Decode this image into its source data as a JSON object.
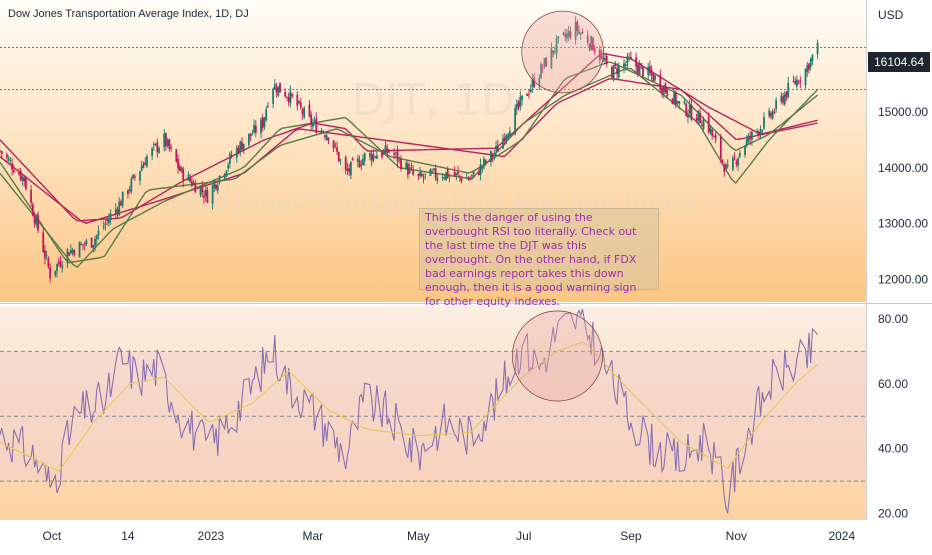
{
  "chart_data": [
    {
      "type": "candlestick",
      "title": "Dow Jones Transportation Average Index, 1D, DJ",
      "watermark": "DJT, 1D\nDow Jones Transportation Average Index",
      "currency": "USD",
      "last_price_label": "16104.64",
      "y_ticks": [
        "15000.00",
        "14000.00",
        "13000.00",
        "12000.00"
      ],
      "y_tick_values": [
        15000,
        14000,
        13000,
        12000
      ],
      "ylim": [
        11600,
        17000
      ],
      "x_tick_labels": [
        "Oct",
        "14",
        "2023",
        "Mar",
        "May",
        "Jul",
        "Sep",
        "Nov",
        "2024"
      ],
      "x_tick_dates": [
        "2022-10-01",
        "2022-11-14",
        "2023-01-01",
        "2023-03-01",
        "2023-05-01",
        "2023-07-01",
        "2023-09-01",
        "2023-11-01",
        "2024-01-01"
      ],
      "x_range": [
        "2022-09-01",
        "2024-01-15"
      ],
      "close_anchors": [
        [
          "2022-09-01",
          14300
        ],
        [
          "2022-09-15",
          13800
        ],
        [
          "2022-09-30",
          12100
        ],
        [
          "2022-10-10",
          12500
        ],
        [
          "2022-10-25",
          12700
        ],
        [
          "2022-11-10",
          13400
        ],
        [
          "2022-11-25",
          14200
        ],
        [
          "2022-12-05",
          14500
        ],
        [
          "2022-12-15",
          13900
        ],
        [
          "2022-12-30",
          13500
        ],
        [
          "2023-01-15",
          14300
        ],
        [
          "2023-01-31",
          14800
        ],
        [
          "2023-02-05",
          15500
        ],
        [
          "2023-02-15",
          15300
        ],
        [
          "2023-02-28",
          14800
        ],
        [
          "2023-03-10",
          14600
        ],
        [
          "2023-03-20",
          13900
        ],
        [
          "2023-03-31",
          14200
        ],
        [
          "2023-04-15",
          14300
        ],
        [
          "2023-04-30",
          13800
        ],
        [
          "2023-05-15",
          13900
        ],
        [
          "2023-05-31",
          13800
        ],
        [
          "2023-06-15",
          14300
        ],
        [
          "2023-06-30",
          15200
        ],
        [
          "2023-07-10",
          15700
        ],
        [
          "2023-07-20",
          16200
        ],
        [
          "2023-07-31",
          16500
        ],
        [
          "2023-08-10",
          16200
        ],
        [
          "2023-08-20",
          15700
        ],
        [
          "2023-08-31",
          15900
        ],
        [
          "2023-09-15",
          15600
        ],
        [
          "2023-09-30",
          15100
        ],
        [
          "2023-10-15",
          14800
        ],
        [
          "2023-10-27",
          13900
        ],
        [
          "2023-11-05",
          14400
        ],
        [
          "2023-11-20",
          14900
        ],
        [
          "2023-12-01",
          15400
        ],
        [
          "2023-12-10",
          15700
        ],
        [
          "2023-12-18",
          16150
        ]
      ],
      "indicators": [
        {
          "kind": "moving-average",
          "color": "#b5245e",
          "anchors": [
            [
              "2022-09-01",
              14500
            ],
            [
              "2022-10-15",
              13050
            ],
            [
              "2022-11-10",
              13100
            ],
            [
              "2022-12-15",
              13750
            ],
            [
              "2023-02-01",
              14500
            ],
            [
              "2023-03-01",
              14800
            ],
            [
              "2023-03-20",
              14700
            ],
            [
              "2023-04-01",
              14300
            ],
            [
              "2023-06-15",
              14350
            ],
            [
              "2023-08-15",
              16050
            ],
            [
              "2023-09-01",
              15950
            ],
            [
              "2023-10-15",
              15100
            ],
            [
              "2023-11-15",
              14600
            ],
            [
              "2023-12-18",
              14850
            ]
          ]
        },
        {
          "kind": "moving-average",
          "color": "#b5245e",
          "anchors": [
            [
              "2022-09-01",
              14200
            ],
            [
              "2022-10-20",
              13000
            ],
            [
              "2022-12-01",
              13400
            ],
            [
              "2023-01-20",
              13900
            ],
            [
              "2023-02-20",
              14700
            ],
            [
              "2023-04-10",
              14500
            ],
            [
              "2023-06-20",
              14200
            ],
            [
              "2023-07-20",
              15150
            ],
            [
              "2023-08-20",
              15600
            ],
            [
              "2023-09-30",
              15400
            ],
            [
              "2023-11-01",
              14500
            ],
            [
              "2023-12-18",
              14800
            ]
          ]
        },
        {
          "kind": "moving-average",
          "color": "#5a7a4a",
          "anchors": [
            [
              "2022-09-01",
              14100
            ],
            [
              "2022-10-10",
              12300
            ],
            [
              "2022-10-31",
              12400
            ],
            [
              "2022-11-25",
              13600
            ],
            [
              "2023-01-15",
              13800
            ],
            [
              "2023-02-10",
              14400
            ],
            [
              "2023-03-15",
              14700
            ],
            [
              "2023-04-15",
              14200
            ],
            [
              "2023-05-31",
              13900
            ],
            [
              "2023-06-30",
              14500
            ],
            [
              "2023-07-25",
              15600
            ],
            [
              "2023-08-20",
              15900
            ],
            [
              "2023-09-30",
              15300
            ],
            [
              "2023-10-31",
              14300
            ],
            [
              "2023-11-20",
              14600
            ],
            [
              "2023-12-18",
              15300
            ]
          ]
        },
        {
          "kind": "moving-average",
          "color": "#5a7a4a",
          "anchors": [
            [
              "2022-09-01",
              13900
            ],
            [
              "2022-10-15",
              12200
            ],
            [
              "2022-11-05",
              12900
            ],
            [
              "2022-12-05",
              13400
            ],
            [
              "2023-01-20",
              14000
            ],
            [
              "2023-02-10",
              14700
            ],
            [
              "2023-03-20",
              14900
            ],
            [
              "2023-04-20",
              14000
            ],
            [
              "2023-06-01",
              13800
            ],
            [
              "2023-07-01",
              14800
            ],
            [
              "2023-07-25",
              15300
            ],
            [
              "2023-08-31",
              15800
            ],
            [
              "2023-10-10",
              14800
            ],
            [
              "2023-10-31",
              13700
            ],
            [
              "2023-11-20",
              14500
            ],
            [
              "2023-12-18",
              15400
            ]
          ]
        }
      ],
      "circled_region": {
        "from": "2023-07-01",
        "to": "2023-08-15"
      }
    },
    {
      "type": "line",
      "series": [
        {
          "color": "#8a6fb0",
          "anchors": [
            [
              "2022-09-01",
              45
            ],
            [
              "2022-09-20",
              38
            ],
            [
              "2022-10-01",
              28
            ],
            [
              "2022-10-15",
              50
            ],
            [
              "2022-11-01",
              55
            ],
            [
              "2022-11-10",
              68
            ],
            [
              "2022-11-20",
              62
            ],
            [
              "2022-12-01",
              65
            ],
            [
              "2022-12-15",
              50
            ],
            [
              "2022-12-31",
              40
            ],
            [
              "2023-01-20",
              55
            ],
            [
              "2023-01-31",
              65
            ],
            [
              "2023-02-05",
              72
            ],
            [
              "2023-02-15",
              60
            ],
            [
              "2023-03-01",
              52
            ],
            [
              "2023-03-20",
              38
            ],
            [
              "2023-03-31",
              55
            ],
            [
              "2023-04-15",
              50
            ],
            [
              "2023-04-30",
              38
            ],
            [
              "2023-05-15",
              48
            ],
            [
              "2023-05-31",
              44
            ],
            [
              "2023-06-15",
              55
            ],
            [
              "2023-06-30",
              72
            ],
            [
              "2023-07-10",
              65
            ],
            [
              "2023-07-20",
              76
            ],
            [
              "2023-07-31",
              80
            ],
            [
              "2023-08-10",
              74
            ],
            [
              "2023-08-20",
              62
            ],
            [
              "2023-08-31",
              50
            ],
            [
              "2023-09-15",
              40
            ],
            [
              "2023-09-30",
              36
            ],
            [
              "2023-10-15",
              44
            ],
            [
              "2023-10-27",
              24
            ],
            [
              "2023-11-05",
              42
            ],
            [
              "2023-11-20",
              60
            ],
            [
              "2023-12-01",
              65
            ],
            [
              "2023-12-10",
              67
            ],
            [
              "2023-12-18",
              73
            ]
          ]
        },
        {
          "color": "#e6c84a",
          "anchors": [
            [
              "2022-09-01",
              42
            ],
            [
              "2022-10-05",
              33
            ],
            [
              "2022-10-25",
              48
            ],
            [
              "2022-11-15",
              60
            ],
            [
              "2022-12-05",
              62
            ],
            [
              "2022-12-31",
              48
            ],
            [
              "2023-01-25",
              54
            ],
            [
              "2023-02-15",
              64
            ],
            [
              "2023-03-10",
              52
            ],
            [
              "2023-04-01",
              46
            ],
            [
              "2023-05-01",
              44
            ],
            [
              "2023-05-31",
              45
            ],
            [
              "2023-06-30",
              62
            ],
            [
              "2023-07-20",
              70
            ],
            [
              "2023-08-05",
              73
            ],
            [
              "2023-08-31",
              58
            ],
            [
              "2023-09-30",
              42
            ],
            [
              "2023-10-27",
              34
            ],
            [
              "2023-11-15",
              48
            ],
            [
              "2023-12-05",
              60
            ],
            [
              "2023-12-18",
              66
            ]
          ]
        }
      ],
      "y_ticks": [
        "80.00",
        "60.00",
        "40.00",
        "20.00"
      ],
      "y_tick_values": [
        80,
        60,
        40,
        20
      ],
      "ylim": [
        18,
        84
      ],
      "upper_band": 70,
      "lower_band": 30,
      "mid_line": 50,
      "circled_region": {
        "from": "2023-06-25",
        "to": "2023-08-15"
      }
    }
  ],
  "annotation": {
    "text": "This is the danger of using the overbought RSI too literally. Check out the last time the DJT was this overbought. On the other hand, if FDX bad earnings report takes this down enough, then it is a good warning sign for other equity indexes."
  },
  "colors": {
    "up": "#1f7a6b",
    "down": "#c2185b",
    "bg_top": "#fffdf7",
    "bg_bottom": "#fbc27f"
  }
}
